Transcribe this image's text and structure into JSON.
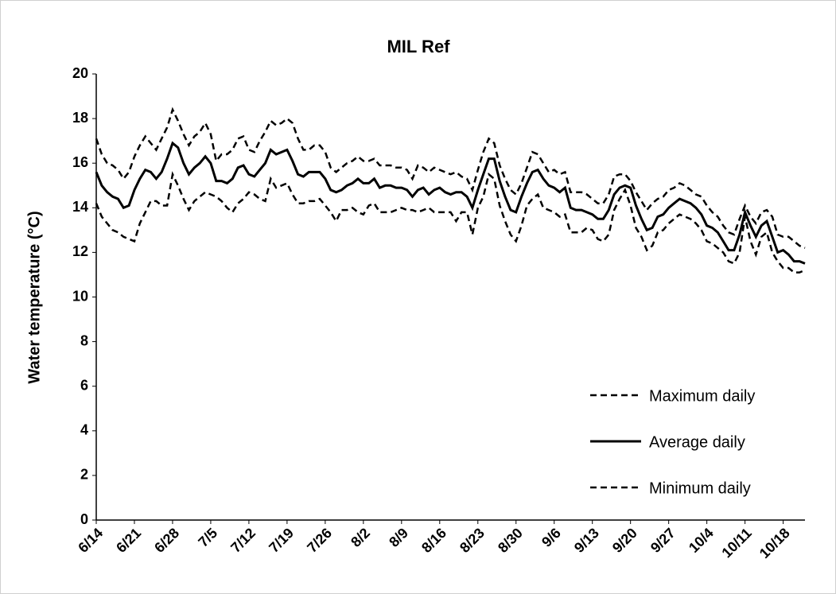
{
  "chart_data": {
    "type": "line",
    "title": "MIL Ref",
    "y_label": "Water temperature  (°C)",
    "categories": [
      "6/14",
      null,
      null,
      null,
      null,
      null,
      null,
      "6/21",
      null,
      null,
      null,
      null,
      null,
      null,
      "6/28",
      null,
      null,
      null,
      null,
      null,
      null,
      "7/5",
      null,
      null,
      null,
      null,
      null,
      null,
      "7/12",
      null,
      null,
      null,
      null,
      null,
      null,
      "7/19",
      null,
      null,
      null,
      null,
      null,
      null,
      "7/26",
      null,
      null,
      null,
      null,
      null,
      null,
      "8/2",
      null,
      null,
      null,
      null,
      null,
      null,
      "8/9",
      null,
      null,
      null,
      null,
      null,
      null,
      "8/16",
      null,
      null,
      null,
      null,
      null,
      null,
      "8/23",
      null,
      null,
      null,
      null,
      null,
      null,
      "8/30",
      null,
      null,
      null,
      null,
      null,
      null,
      "9/6",
      null,
      null,
      null,
      null,
      null,
      null,
      "9/13",
      null,
      null,
      null,
      null,
      null,
      null,
      "9/20",
      null,
      null,
      null,
      null,
      null,
      null,
      "9/27",
      null,
      null,
      null,
      null,
      null,
      null,
      "10/4",
      null,
      null,
      null,
      null,
      null,
      null,
      "10/11",
      null,
      null,
      null,
      null,
      null,
      null,
      "10/18",
      null,
      null,
      null,
      null
    ],
    "series": [
      {
        "name": "Maximum daily",
        "color": "#000000",
        "style": "dashed",
        "values": [
          17.1,
          16.4,
          16.0,
          15.9,
          15.7,
          15.3,
          15.6,
          16.3,
          16.8,
          17.2,
          16.9,
          16.6,
          17.1,
          17.6,
          18.4,
          17.9,
          17.3,
          16.8,
          17.2,
          17.4,
          17.8,
          17.3,
          16.1,
          16.4,
          16.4,
          16.6,
          17.1,
          17.2,
          16.6,
          16.5,
          17.0,
          17.4,
          17.9,
          17.7,
          17.8,
          18.0,
          17.8,
          17.1,
          16.6,
          16.6,
          16.8,
          16.8,
          16.5,
          15.8,
          15.6,
          15.8,
          16.0,
          16.1,
          16.3,
          16.1,
          16.1,
          16.2,
          15.9,
          15.9,
          15.9,
          15.8,
          15.8,
          15.7,
          15.3,
          15.9,
          15.8,
          15.6,
          15.8,
          15.7,
          15.6,
          15.5,
          15.6,
          15.4,
          15.3,
          14.8,
          15.7,
          16.5,
          17.1,
          16.9,
          15.9,
          15.3,
          14.8,
          14.6,
          15.1,
          15.8,
          16.5,
          16.4,
          16.0,
          15.6,
          15.7,
          15.5,
          15.6,
          14.7,
          14.7,
          14.7,
          14.6,
          14.4,
          14.2,
          14.2,
          14.6,
          15.4,
          15.5,
          15.5,
          15.2,
          14.7,
          14.3,
          13.9,
          14.2,
          14.4,
          14.5,
          14.8,
          14.9,
          15.1,
          15.0,
          14.8,
          14.6,
          14.5,
          14.1,
          13.8,
          13.6,
          13.2,
          12.9,
          12.8,
          13.5,
          14.1,
          13.6,
          13.3,
          13.8,
          13.9,
          13.6,
          12.8,
          12.7,
          12.7,
          12.5,
          12.3,
          12.2
        ]
      },
      {
        "name": "Average daily",
        "color": "#000000",
        "style": "solid",
        "values": [
          15.6,
          15.0,
          14.7,
          14.5,
          14.4,
          14.0,
          14.1,
          14.8,
          15.3,
          15.7,
          15.6,
          15.3,
          15.6,
          16.2,
          16.9,
          16.7,
          16.0,
          15.5,
          15.8,
          16.0,
          16.3,
          16.0,
          15.2,
          15.2,
          15.1,
          15.3,
          15.8,
          15.9,
          15.5,
          15.4,
          15.7,
          16.0,
          16.6,
          16.4,
          16.5,
          16.6,
          16.1,
          15.5,
          15.4,
          15.6,
          15.6,
          15.6,
          15.3,
          14.8,
          14.7,
          14.8,
          15.0,
          15.1,
          15.3,
          15.1,
          15.1,
          15.3,
          14.9,
          15.0,
          15.0,
          14.9,
          14.9,
          14.8,
          14.5,
          14.8,
          14.9,
          14.6,
          14.8,
          14.9,
          14.7,
          14.6,
          14.7,
          14.7,
          14.5,
          14.0,
          14.8,
          15.5,
          16.2,
          16.2,
          15.2,
          14.5,
          13.9,
          13.8,
          14.5,
          15.1,
          15.6,
          15.7,
          15.3,
          15.0,
          14.9,
          14.7,
          14.9,
          14.0,
          13.9,
          13.9,
          13.8,
          13.7,
          13.5,
          13.5,
          13.9,
          14.6,
          14.9,
          15.0,
          14.9,
          14.1,
          13.5,
          13.0,
          13.1,
          13.6,
          13.7,
          14.0,
          14.2,
          14.4,
          14.3,
          14.2,
          14.0,
          13.7,
          13.2,
          13.1,
          12.9,
          12.5,
          12.1,
          12.1,
          12.8,
          13.8,
          13.2,
          12.7,
          13.2,
          13.4,
          12.7,
          12.0,
          12.1,
          11.9,
          11.6,
          11.6,
          11.5
        ]
      },
      {
        "name": "Minimum daily",
        "color": "#000000",
        "style": "dashed",
        "values": [
          14.2,
          13.6,
          13.3,
          13.0,
          12.9,
          12.7,
          12.6,
          12.5,
          13.3,
          13.8,
          14.3,
          14.3,
          14.1,
          14.1,
          15.5,
          15.0,
          14.4,
          13.9,
          14.3,
          14.5,
          14.7,
          14.6,
          14.5,
          14.3,
          14.0,
          13.8,
          14.2,
          14.4,
          14.7,
          14.6,
          14.4,
          14.3,
          15.3,
          14.9,
          15.0,
          15.1,
          14.6,
          14.2,
          14.2,
          14.3,
          14.3,
          14.4,
          14.1,
          13.8,
          13.4,
          13.9,
          13.9,
          14.0,
          13.8,
          13.7,
          14.1,
          14.2,
          13.8,
          13.8,
          13.8,
          13.9,
          14.0,
          13.9,
          13.9,
          13.8,
          13.9,
          14.0,
          13.8,
          13.8,
          13.8,
          13.8,
          13.4,
          13.8,
          13.8,
          12.8,
          14.0,
          14.5,
          15.5,
          15.3,
          14.1,
          13.4,
          12.8,
          12.5,
          13.2,
          14.1,
          14.4,
          14.6,
          14.0,
          13.9,
          13.8,
          13.6,
          13.7,
          12.9,
          12.9,
          12.9,
          13.1,
          13.0,
          12.6,
          12.5,
          12.8,
          13.9,
          14.4,
          14.8,
          14.1,
          13.1,
          12.7,
          12.1,
          12.3,
          12.9,
          13.0,
          13.3,
          13.5,
          13.7,
          13.6,
          13.5,
          13.3,
          13.0,
          12.5,
          12.4,
          12.2,
          12.0,
          11.6,
          11.5,
          12.0,
          13.6,
          12.5,
          11.9,
          12.7,
          12.9,
          12.0,
          11.6,
          11.3,
          11.3,
          11.1,
          11.1,
          11.2
        ]
      }
    ],
    "ylim": [
      0,
      20
    ],
    "yticks": [
      0,
      2,
      4,
      6,
      8,
      10,
      12,
      14,
      16,
      18,
      20
    ],
    "grid": false,
    "legend": "lower right"
  }
}
